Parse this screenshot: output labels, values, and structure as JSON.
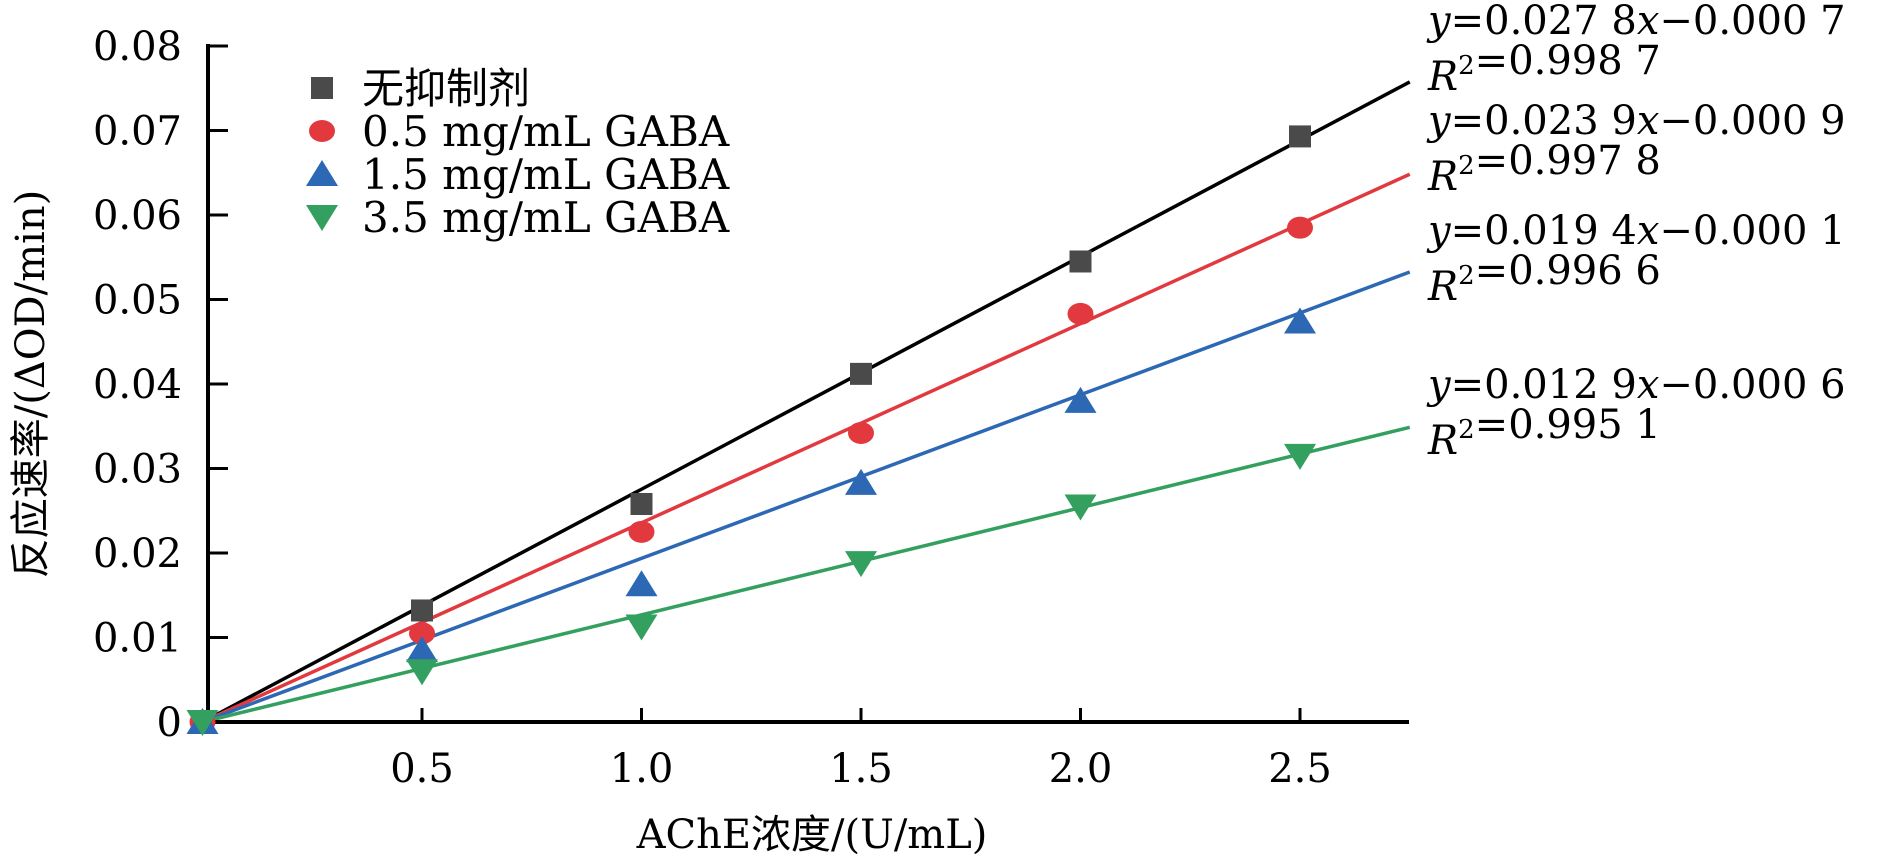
{
  "chart_data": {
    "type": "scatter",
    "title": "",
    "xlabel": "AChE浓度/(U/mL)",
    "ylabel": "反应速率/(ΔOD/min)",
    "xlim": [
      0,
      2.75
    ],
    "ylim": [
      0,
      0.08
    ],
    "grid": false,
    "legend_position": "top-left",
    "x_ticks": [
      0.5,
      1.0,
      1.5,
      2.0,
      2.5
    ],
    "x_tick_labels": [
      "0.5",
      "1.0",
      "1.5",
      "2.0",
      "2.5"
    ],
    "y_ticks": [
      0,
      0.01,
      0.02,
      0.03,
      0.04,
      0.05,
      0.06,
      0.07,
      0.08
    ],
    "y_tick_labels": [
      "0",
      "0.01",
      "0.02",
      "0.03",
      "0.04",
      "0.05",
      "0.06",
      "0.07",
      "0.08"
    ],
    "x": [
      0,
      0.5,
      1.0,
      1.5,
      2.0,
      2.5
    ],
    "series": [
      {
        "name": "无抑制剂",
        "marker": "square",
        "color": "#4a4a4a",
        "line_color": "#000000",
        "values": [
          0,
          0.0132,
          0.0258,
          0.0412,
          0.0545,
          0.0693
        ],
        "fit": {
          "slope": 0.0278,
          "intercept": -0.0007,
          "r2": 0.9987
        },
        "equation_label": "y=0.027 8x−0.000 7",
        "r2_label": "R²=0.998 7"
      },
      {
        "name": "0.5 mg/mL GABA",
        "marker": "circle",
        "color": "#e2393f",
        "line_color": "#e2393f",
        "values": [
          0,
          0.0105,
          0.0225,
          0.0342,
          0.0483,
          0.0585
        ],
        "fit": {
          "slope": 0.0239,
          "intercept": -0.0009,
          "r2": 0.9978
        },
        "equation_label": "y=0.023 9x−0.000 9",
        "r2_label": "R²=0.997 8"
      },
      {
        "name": "1.5 mg/mL GABA",
        "marker": "triangle-up",
        "color": "#2d68b4",
        "line_color": "#2d68b4",
        "values": [
          0,
          0.0085,
          0.0163,
          0.0283,
          0.038,
          0.0474
        ],
        "fit": {
          "slope": 0.0194,
          "intercept": -0.0001,
          "r2": 0.9966
        },
        "equation_label": "y=0.019 4x−0.000 1",
        "r2_label": "R²=0.996 6"
      },
      {
        "name": "3.5 mg/mL GABA",
        "marker": "triangle-down",
        "color": "#34a060",
        "line_color": "#34a060",
        "values": [
          0,
          0.006,
          0.0113,
          0.0188,
          0.0255,
          0.0315
        ],
        "fit": {
          "slope": 0.0129,
          "intercept": -0.0006,
          "r2": 0.9951
        },
        "equation_label": "y=0.012 9x−0.000 6",
        "r2_label": "R²=0.995 1"
      }
    ]
  }
}
